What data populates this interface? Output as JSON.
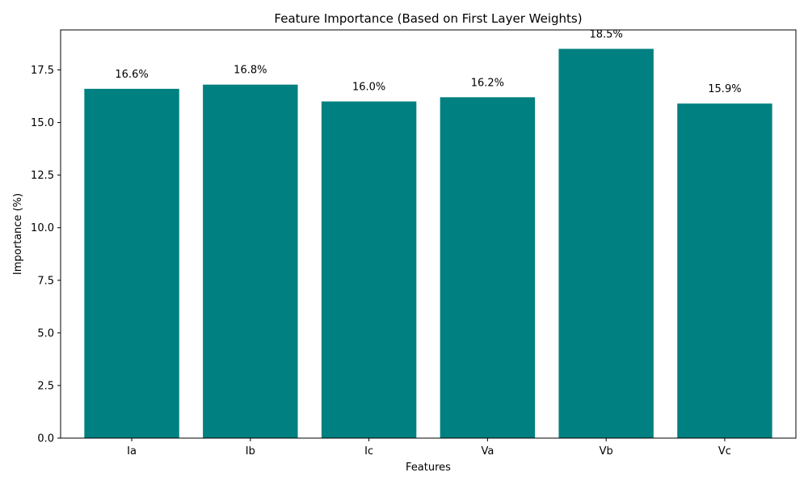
{
  "chart_data": {
    "type": "bar",
    "title": "Feature Importance (Based on First Layer Weights)",
    "xlabel": "Features",
    "ylabel": "Importance (%)",
    "categories": [
      "Ia",
      "Ib",
      "Ic",
      "Va",
      "Vb",
      "Vc"
    ],
    "values": [
      16.6,
      16.8,
      16.0,
      16.2,
      18.5,
      15.9
    ],
    "value_labels": [
      "16.6%",
      "16.8%",
      "16.0%",
      "16.2%",
      "18.5%",
      "15.9%"
    ],
    "ylim": [
      0,
      19.4
    ],
    "yticks": [
      0.0,
      2.5,
      5.0,
      7.5,
      10.0,
      12.5,
      15.0,
      17.5
    ],
    "ytick_labels": [
      "0.0",
      "2.5",
      "5.0",
      "7.5",
      "10.0",
      "12.5",
      "15.0",
      "17.5"
    ],
    "bar_color": "#008080",
    "grid": false,
    "legend": "none"
  }
}
